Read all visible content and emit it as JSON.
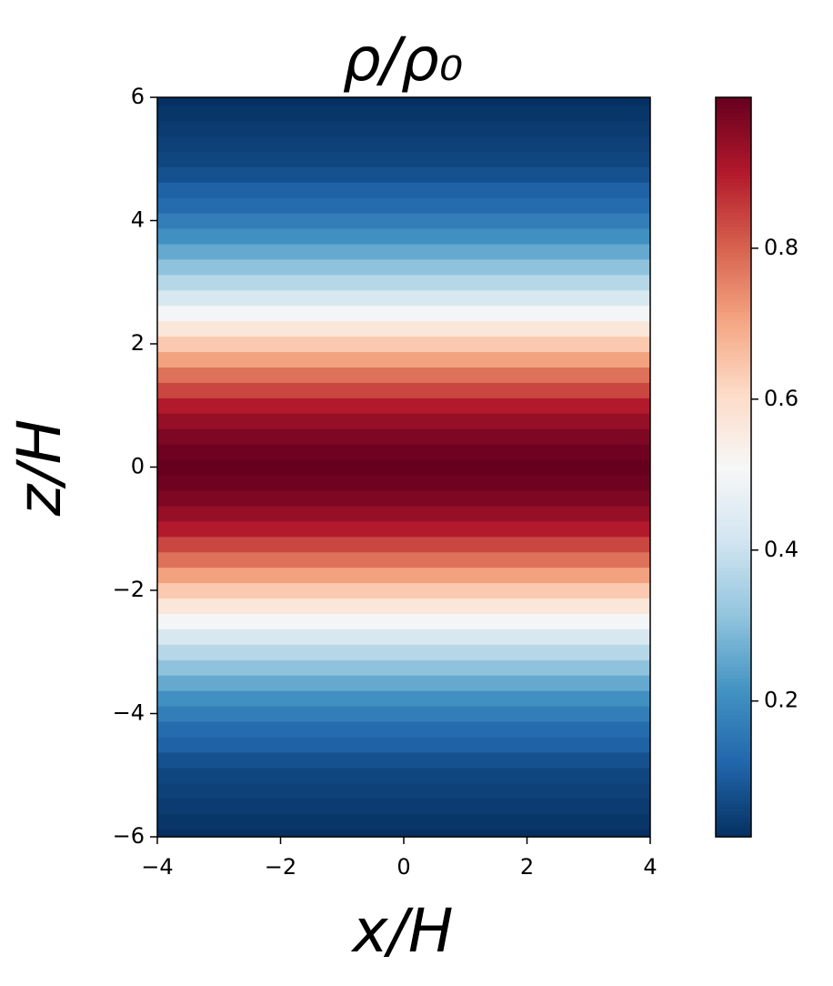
{
  "chart_data": {
    "type": "heatmap",
    "title": "ρ/ρ₀",
    "x_label": "x/H",
    "y_label": "z/H",
    "xlim": [
      -4,
      4
    ],
    "ylim": [
      -6,
      6
    ],
    "xticks": [
      {
        "value": -4,
        "label": "−4"
      },
      {
        "value": -2,
        "label": "−2"
      },
      0,
      2,
      4
    ],
    "yticks": [
      {
        "value": -6,
        "label": "−6"
      },
      {
        "value": -4,
        "label": "−4"
      },
      {
        "value": -2,
        "label": "−2"
      },
      0,
      2,
      4,
      6
    ],
    "y": [
      -6,
      -5.75,
      -5.5,
      -5.25,
      -5,
      -4.75,
      -4.5,
      -4.25,
      -4,
      -3.75,
      -3.5,
      -3.25,
      -3,
      -2.75,
      -2.5,
      -2.25,
      -2,
      -1.75,
      -1.5,
      -1.25,
      -1,
      -0.75,
      -0.5,
      -0.25,
      0,
      0.25,
      0.5,
      0.75,
      1,
      1.25,
      1.5,
      1.75,
      2,
      2.25,
      2.5,
      2.75,
      3,
      3.25,
      3.5,
      3.75,
      4,
      4.25,
      4.5,
      4.75,
      5,
      5.25,
      5.5,
      5.75,
      6
    ],
    "values": [
      0.02,
      0.03,
      0.04,
      0.05,
      0.06,
      0.08,
      0.11,
      0.13,
      0.17,
      0.21,
      0.26,
      0.31,
      0.37,
      0.43,
      0.5,
      0.57,
      0.64,
      0.71,
      0.78,
      0.84,
      0.9,
      0.94,
      0.97,
      0.99,
      1,
      0.99,
      0.97,
      0.94,
      0.9,
      0.84,
      0.78,
      0.71,
      0.64,
      0.57,
      0.5,
      0.43,
      0.37,
      0.31,
      0.26,
      0.21,
      0.17,
      0.13,
      0.11,
      0.08,
      0.06,
      0.05,
      0.04,
      0.03,
      0.02
    ],
    "clim": [
      0.02,
      1
    ],
    "colorbar_ticks": [
      0.2,
      0.4,
      0.6,
      0.8
    ],
    "colormap": [
      "#053061",
      "#2166ac",
      "#4393c3",
      "#92c5de",
      "#d1e5f0",
      "#f7f7f7",
      "#fddbc7",
      "#f4a582",
      "#d6604d",
      "#b2182b",
      "#67001f"
    ]
  }
}
